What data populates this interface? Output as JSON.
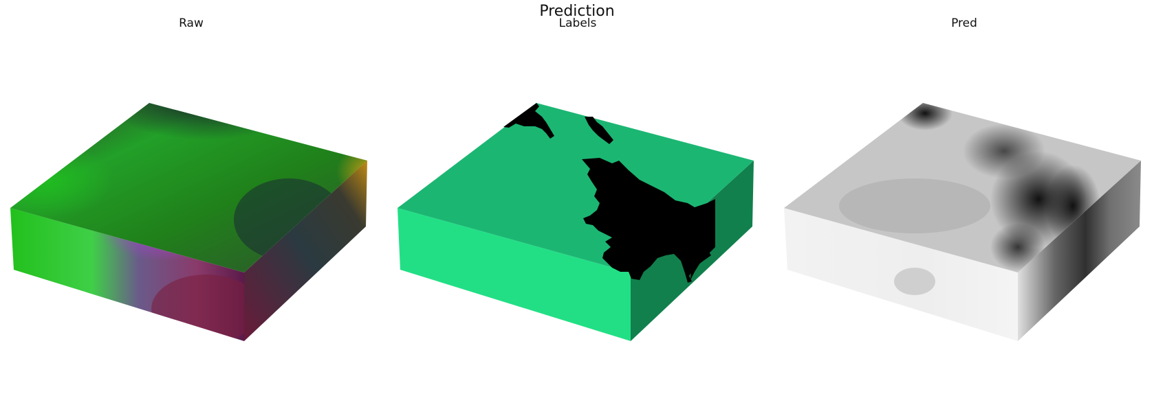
{
  "figure": {
    "suptitle": "Prediction",
    "panels": [
      {
        "title": "Raw"
      },
      {
        "title": "Labels"
      },
      {
        "title": "Pred"
      }
    ]
  },
  "colors": {
    "labels_top": "#1cb673",
    "labels_front": "#22df85",
    "labels_side": "#11804d",
    "mask": "#000000",
    "pred_top": "#c6c6c6",
    "pred_front": "#f0f0f0",
    "pred_side": "#8a8a8a"
  }
}
